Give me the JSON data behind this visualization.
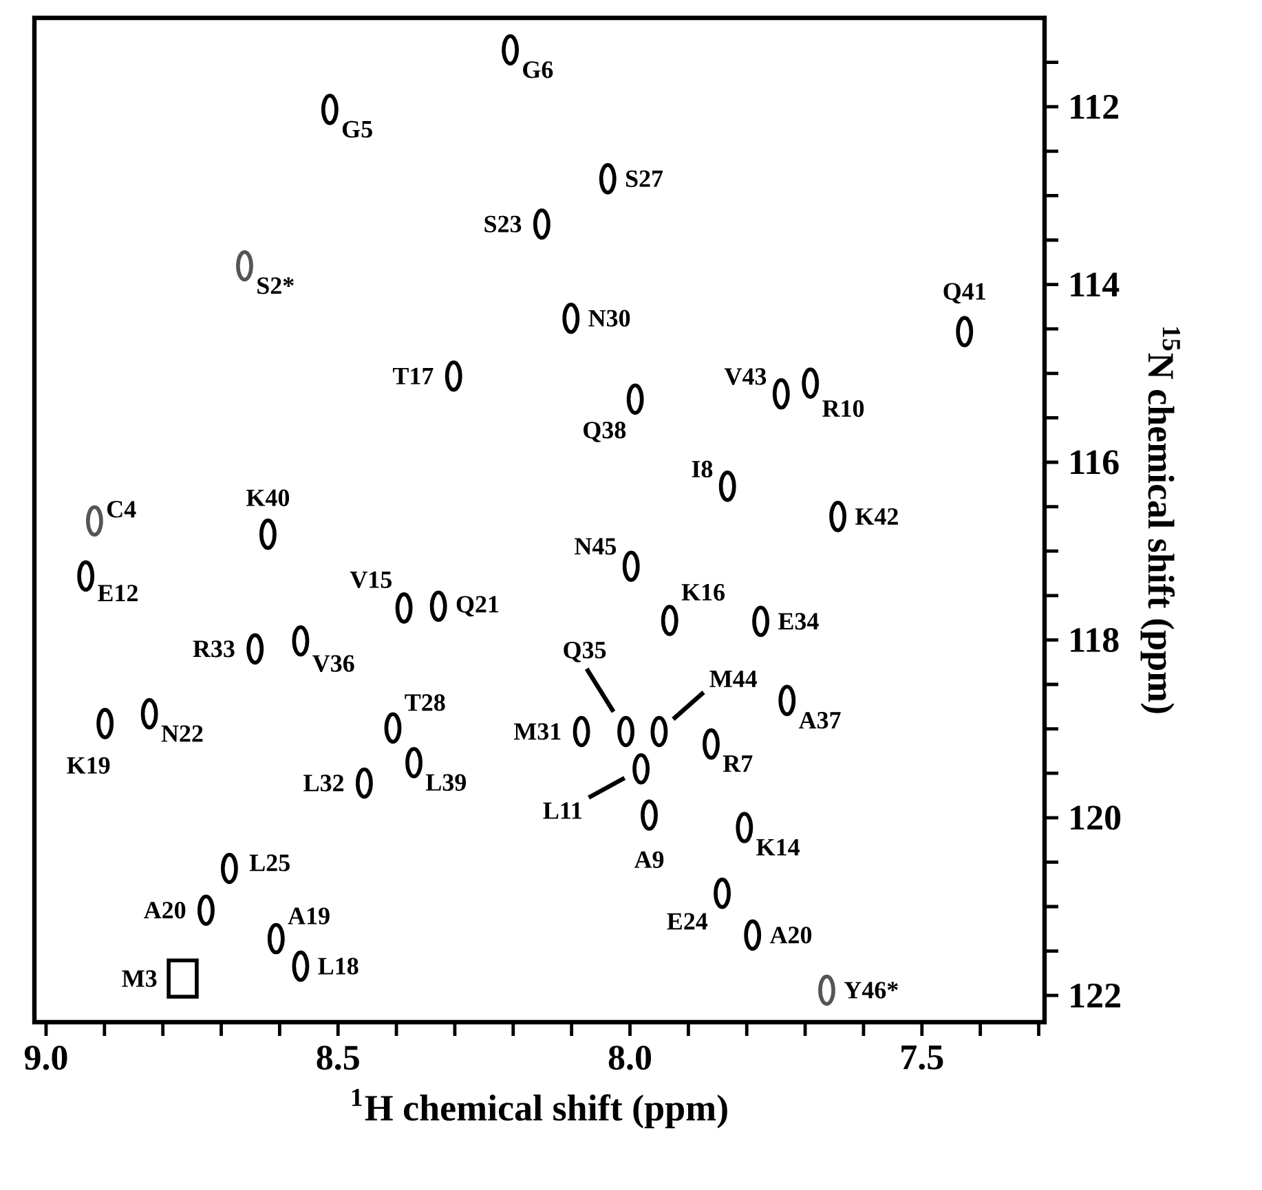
{
  "chart_data": {
    "type": "scatter",
    "xlabel": "$^{1}$H chemical shift (ppm)",
    "ylabel": "$^{15}$N chemical shift (ppm)",
    "xlim": [
      9.02,
      7.29
    ],
    "ylim": [
      122.3,
      111.0
    ],
    "xticks": [
      {
        "value": 9.0,
        "label": "9.0"
      },
      {
        "value": 8.9,
        "label": null
      },
      {
        "value": 8.8,
        "label": null
      },
      {
        "value": 8.7,
        "label": null
      },
      {
        "value": 8.6,
        "label": null
      },
      {
        "value": 8.5,
        "label": "8.5"
      },
      {
        "value": 8.4,
        "label": null
      },
      {
        "value": 8.3,
        "label": null
      },
      {
        "value": 8.2,
        "label": null
      },
      {
        "value": 8.1,
        "label": null
      },
      {
        "value": 8.0,
        "label": "8.0"
      },
      {
        "value": 7.9,
        "label": null
      },
      {
        "value": 7.8,
        "label": null
      },
      {
        "value": 7.7,
        "label": null
      },
      {
        "value": 7.6,
        "label": null
      },
      {
        "value": 7.5,
        "label": "7.5"
      },
      {
        "value": 7.4,
        "label": null
      },
      {
        "value": 7.3,
        "label": null
      }
    ],
    "yticks": [
      {
        "value": 111.5,
        "label": null
      },
      112,
      {
        "value": 112.5,
        "label": null
      },
      {
        "value": 113,
        "label": null
      },
      {
        "value": 113.5,
        "label": null
      },
      114,
      {
        "value": 114.5,
        "label": null
      },
      {
        "value": 115,
        "label": null
      },
      {
        "value": 115.5,
        "label": null
      },
      116,
      {
        "value": 116.5,
        "label": null
      },
      {
        "value": 117,
        "label": null
      },
      {
        "value": 117.5,
        "label": null
      },
      118,
      {
        "value": 118.5,
        "label": null
      },
      {
        "value": 119,
        "label": null
      },
      {
        "value": 119.5,
        "label": null
      },
      120,
      {
        "value": 120.5,
        "label": null
      },
      {
        "value": 121,
        "label": null
      },
      {
        "value": 121.5,
        "label": null
      },
      122
    ],
    "series": [
      {
        "color": "#000000",
        "marker": "circle",
        "x": [
          8.205,
          8.514,
          8.038,
          8.151,
          7.427,
          8.101,
          8.302,
          7.991,
          7.741,
          7.691,
          7.833,
          7.644,
          8.62,
          7.998,
          8.932,
          8.387,
          8.328,
          7.932,
          7.776,
          8.642,
          8.564,
          7.731,
          8.007,
          7.95,
          8.083,
          8.406,
          8.823,
          8.899,
          7.861,
          8.37,
          7.981,
          8.455,
          7.967,
          7.804,
          8.686,
          7.842,
          8.726,
          7.79,
          8.606,
          8.564
        ],
        "values": [
          111.36,
          112.03,
          112.81,
          113.32,
          114.53,
          114.38,
          115.03,
          115.29,
          115.23,
          115.11,
          116.27,
          116.61,
          116.81,
          117.17,
          117.28,
          117.64,
          117.62,
          117.78,
          117.79,
          118.1,
          118.01,
          118.68,
          119.03,
          119.03,
          119.03,
          118.99,
          118.83,
          118.94,
          119.17,
          119.38,
          119.45,
          119.61,
          119.97,
          120.11,
          120.57,
          120.85,
          121.04,
          121.32,
          121.36,
          121.67
        ]
      },
      {
        "color": "#555555",
        "marker": "circle",
        "x": [
          8.66,
          8.917,
          7.663
        ],
        "values": [
          113.79,
          116.66,
          121.94
        ]
      },
      {
        "color": "#000000",
        "marker": "square",
        "x": [
          8.766
        ],
        "values": [
          121.81
        ]
      }
    ],
    "annotations": [
      {
        "text": "G6",
        "x": 8.205,
        "y": 111.36
      },
      {
        "text": "G5",
        "x": 8.514,
        "y": 112.03
      },
      {
        "text": "S27",
        "x": 8.038,
        "y": 112.81
      },
      {
        "text": "S23",
        "x": 8.151,
        "y": 113.32
      },
      {
        "text": "S2*",
        "x": 8.66,
        "y": 113.79
      },
      {
        "text": "Q41",
        "x": 7.427,
        "y": 114.53
      },
      {
        "text": "N30",
        "x": 8.101,
        "y": 114.38
      },
      {
        "text": "T17",
        "x": 8.302,
        "y": 115.03
      },
      {
        "text": "Q38",
        "x": 7.991,
        "y": 115.29
      },
      {
        "text": "V43",
        "x": 7.741,
        "y": 115.23
      },
      {
        "text": "R10",
        "x": 7.691,
        "y": 115.11
      },
      {
        "text": "I8",
        "x": 7.833,
        "y": 116.27
      },
      {
        "text": "K42",
        "x": 7.644,
        "y": 116.61
      },
      {
        "text": "C4",
        "x": 8.917,
        "y": 116.66
      },
      {
        "text": "K40",
        "x": 8.62,
        "y": 116.81
      },
      {
        "text": "N45",
        "x": 7.998,
        "y": 117.17
      },
      {
        "text": "E12",
        "x": 8.932,
        "y": 117.28
      },
      {
        "text": "V15",
        "x": 8.387,
        "y": 117.64
      },
      {
        "text": "Q21",
        "x": 8.328,
        "y": 117.62
      },
      {
        "text": "K16",
        "x": 7.932,
        "y": 117.78
      },
      {
        "text": "E34",
        "x": 7.776,
        "y": 117.79
      },
      {
        "text": "R33",
        "x": 8.642,
        "y": 118.1
      },
      {
        "text": "V36",
        "x": 8.564,
        "y": 118.01
      },
      {
        "text": "A37",
        "x": 7.731,
        "y": 118.68
      },
      {
        "text": "Q35",
        "x": 8.007,
        "y": 119.03
      },
      {
        "text": "M44",
        "x": 7.95,
        "y": 119.03
      },
      {
        "text": "M31",
        "x": 8.083,
        "y": 119.03
      },
      {
        "text": "T28",
        "x": 8.406,
        "y": 118.99
      },
      {
        "text": "N22",
        "x": 8.823,
        "y": 118.83
      },
      {
        "text": "K19",
        "x": 8.899,
        "y": 118.94
      },
      {
        "text": "R7",
        "x": 7.861,
        "y": 119.17
      },
      {
        "text": "L39",
        "x": 8.37,
        "y": 119.38
      },
      {
        "text": "L11",
        "x": 7.981,
        "y": 119.45
      },
      {
        "text": "L32",
        "x": 8.455,
        "y": 119.61
      },
      {
        "text": "A9",
        "x": 7.967,
        "y": 119.97
      },
      {
        "text": "K14",
        "x": 7.804,
        "y": 120.11
      },
      {
        "text": "L25",
        "x": 8.686,
        "y": 120.57
      },
      {
        "text": "E24",
        "x": 7.842,
        "y": 120.85
      },
      {
        "text": "A20",
        "x": 8.726,
        "y": 121.04
      },
      {
        "text": "A20",
        "x": 7.79,
        "y": 121.32
      },
      {
        "text": "A19",
        "x": 8.606,
        "y": 121.36
      },
      {
        "text": "L18",
        "x": 8.564,
        "y": 121.67
      },
      {
        "text": "M3",
        "x": 8.766,
        "y": 121.81
      },
      {
        "text": "Y46*",
        "x": 7.663,
        "y": 121.94
      }
    ]
  }
}
